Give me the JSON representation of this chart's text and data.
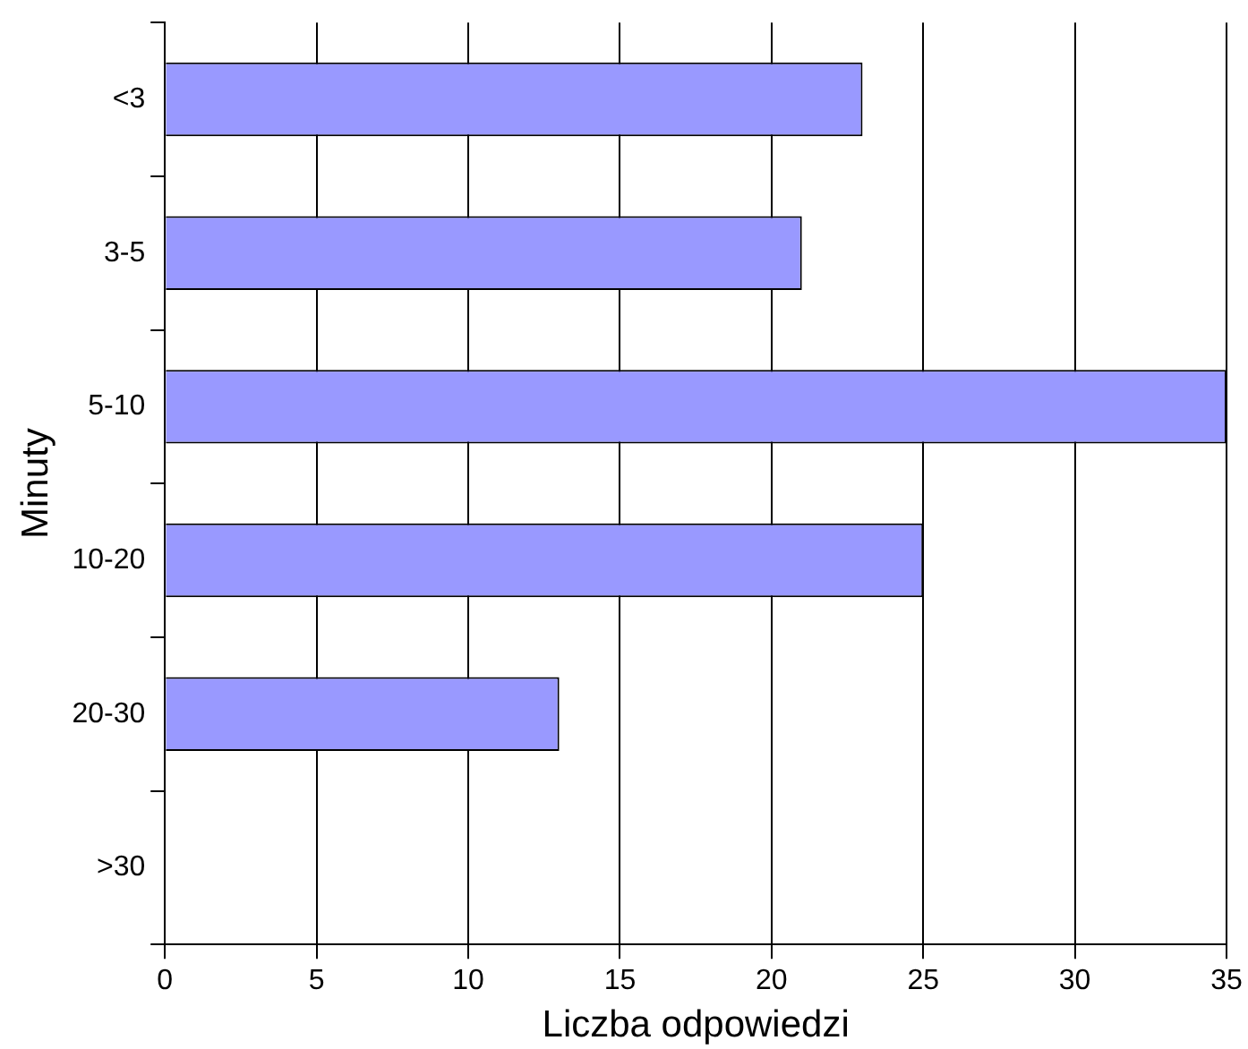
{
  "chart_data": {
    "type": "bar",
    "orientation": "horizontal",
    "categories": [
      "<3",
      "3-5",
      "5-10",
      "10-20",
      "20-30",
      ">30"
    ],
    "values": [
      23,
      21,
      35,
      25,
      13,
      0
    ],
    "color": "#9999ff",
    "xlim": [
      0,
      35
    ],
    "xticks": [
      0,
      5,
      10,
      15,
      20,
      25,
      30,
      35
    ],
    "xlabel": "Liczba odpowiedzi",
    "ylabel": "Minuty",
    "grid": "x",
    "legend": false
  }
}
